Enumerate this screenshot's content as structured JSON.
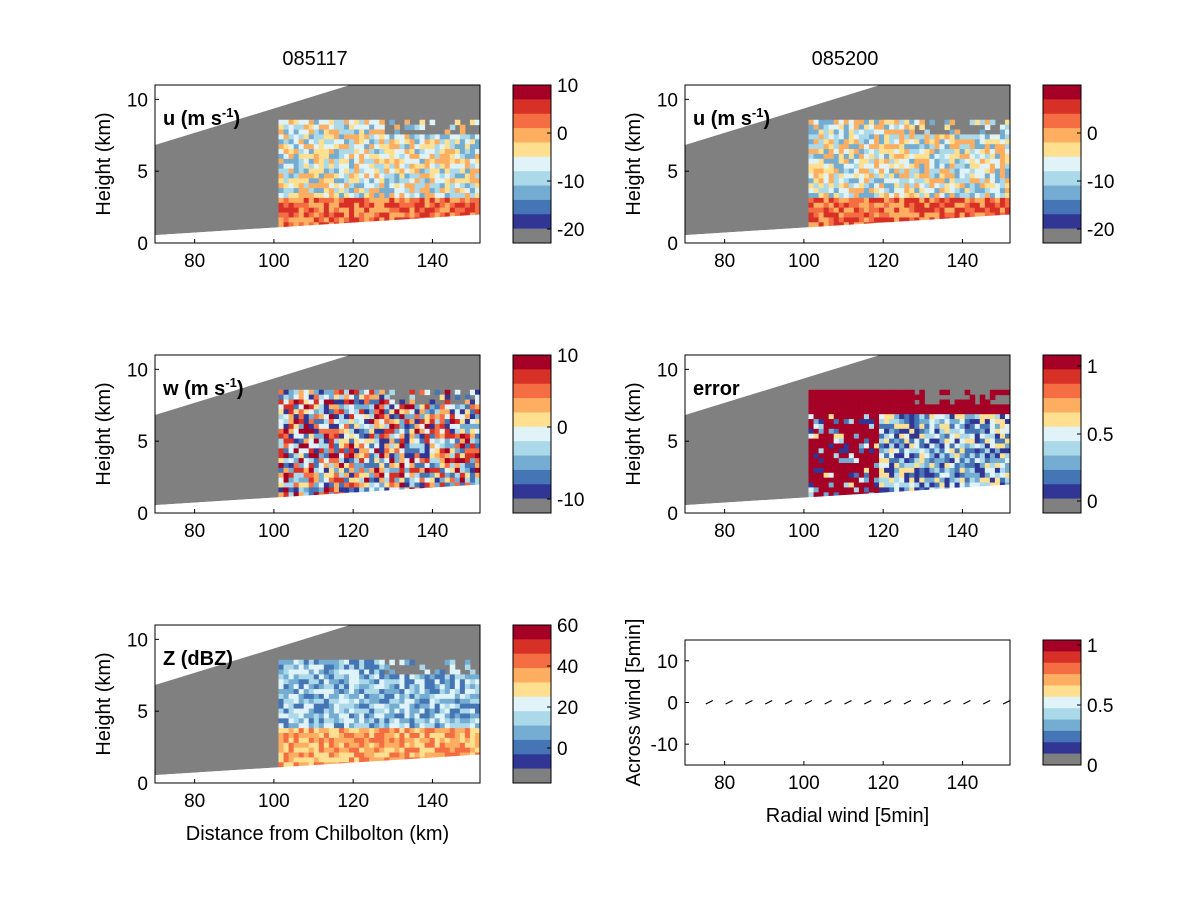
{
  "column_titles": [
    "085117",
    "085200"
  ],
  "colors": {
    "scale": [
      "#a50026",
      "#d73027",
      "#f46d43",
      "#fdae61",
      "#fee090",
      "#e0f3f8",
      "#abd9e9",
      "#74add1",
      "#4575b4",
      "#313695"
    ],
    "masked": "#808080"
  },
  "chart_data": [
    {
      "type": "heatmap",
      "panel": "u-085117",
      "label_main": "u (m s",
      "label_sup": "-1",
      "label_close": ")",
      "ylabel": "Height (km)",
      "xlabel": "",
      "xlim": [
        70,
        152
      ],
      "ylim": [
        0,
        11
      ],
      "x_ticks": [
        80,
        100,
        120,
        140
      ],
      "y_ticks": [
        0,
        5,
        10
      ],
      "colorbar": {
        "ticks": [
          "10",
          "0",
          "-10",
          "-20"
        ]
      },
      "grid": false
    },
    {
      "type": "heatmap",
      "panel": "u-085200",
      "label_main": "u (m s",
      "label_sup": "-1",
      "label_close": ")",
      "ylabel": "Height (km)",
      "xlabel": "",
      "xlim": [
        70,
        152
      ],
      "ylim": [
        0,
        11
      ],
      "x_ticks": [
        80,
        100,
        120,
        140
      ],
      "y_ticks": [
        0,
        5,
        10
      ],
      "colorbar": {
        "ticks": [
          "0",
          "-10",
          "-20"
        ]
      },
      "grid": false
    },
    {
      "type": "heatmap",
      "panel": "w-085117",
      "label_main": "w (m s",
      "label_sup": "-1",
      "label_close": ")",
      "ylabel": "Height (km)",
      "xlabel": "",
      "xlim": [
        70,
        152
      ],
      "ylim": [
        0,
        11
      ],
      "x_ticks": [
        80,
        100,
        120,
        140
      ],
      "y_ticks": [
        0,
        5,
        10
      ],
      "colorbar": {
        "ticks": [
          "10",
          "0",
          "-10"
        ]
      },
      "grid": false
    },
    {
      "type": "heatmap",
      "panel": "error-085200",
      "label_main": "error",
      "label_sup": "",
      "label_close": "",
      "ylabel": "Height (km)",
      "xlabel": "",
      "xlim": [
        70,
        152
      ],
      "ylim": [
        0,
        11
      ],
      "x_ticks": [
        80,
        100,
        120,
        140
      ],
      "y_ticks": [
        0,
        5,
        10
      ],
      "colorbar": {
        "ticks": [
          "1",
          "0.5",
          "0"
        ]
      },
      "grid": false
    },
    {
      "type": "heatmap",
      "panel": "Z-085117",
      "label_main": "Z (dBZ)",
      "label_sup": "",
      "label_close": "",
      "ylabel": "Height (km)",
      "xlabel": "Distance from Chilbolton (km)",
      "xlim": [
        70,
        152
      ],
      "ylim": [
        0,
        11
      ],
      "x_ticks": [
        80,
        100,
        120,
        140
      ],
      "y_ticks": [
        0,
        5,
        10
      ],
      "colorbar": {
        "ticks": [
          "60",
          "40",
          "20",
          "0"
        ]
      },
      "grid": false
    },
    {
      "type": "scatter",
      "panel": "wind-vectors-085200",
      "label_main": "",
      "label_sup": "",
      "label_close": "",
      "ylabel": "Across wind [5min]",
      "xlabel": "Radial wind [5min]",
      "xlim": [
        70,
        152
      ],
      "ylim": [
        -15,
        15
      ],
      "x_ticks": [
        80,
        100,
        120,
        140
      ],
      "y_ticks": [
        -10,
        0,
        10
      ],
      "colorbar": {
        "ticks": [
          "1",
          "0.5",
          "0"
        ]
      },
      "vectors_x": [
        76,
        81,
        86,
        91,
        96,
        101,
        106,
        111,
        116,
        121,
        126,
        131,
        136,
        141,
        146,
        151
      ],
      "vectors_y": [
        0,
        0,
        0,
        0,
        0,
        0,
        0,
        0,
        0,
        0,
        0,
        0,
        0,
        0,
        0,
        0
      ],
      "grid": false
    }
  ]
}
